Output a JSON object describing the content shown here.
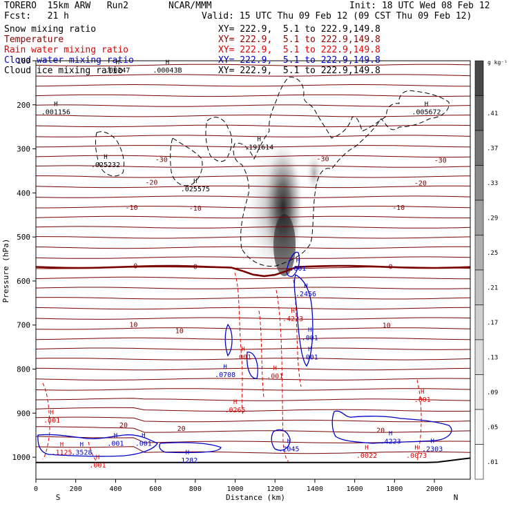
{
  "header": {
    "model": "TORERO  15km ARW   Run2",
    "org": "NCAR/MMM",
    "init": "Init: 18 UTC Wed 08 Feb 12",
    "fcst": "Fcst:   21 h",
    "valid": "Valid: 15 UTC Thu 09 Feb 12 (09 CST Thu 09 Feb 12)"
  },
  "fields": [
    {
      "name": "Snow mixing ratio",
      "range": "XY= 222.9,  5.1 to 222.9,149.8",
      "color": "#000000"
    },
    {
      "name": "Temperature",
      "range": "XY= 222.9,  5.1 to 222.9,149.8",
      "color": "#8b0000"
    },
    {
      "name": "Rain water mixing ratio",
      "range": "XY= 222.9,  5.1 to 222.9,149.8",
      "color": "#e00000"
    },
    {
      "name": "Cloud water mixing ratio",
      "range": "XY= 222.9,  5.1 to 222.9,149.8",
      "color": "#0000cc"
    },
    {
      "name": "Cloud ice mixing ratio",
      "range": "XY= 222.9,  5.1 to 222.9,149.8",
      "color": "#000000"
    }
  ],
  "chart_data": {
    "type": "cross-section contour",
    "xlabel": "Distance (km)",
    "ylabel": "Pressure (hPa)",
    "xlim": [
      0,
      2180
    ],
    "ylim": [
      1050,
      100
    ],
    "xticks": [
      0,
      200,
      400,
      600,
      800,
      1000,
      1200,
      1400,
      1600,
      1800,
      2000
    ],
    "yticks": [
      100,
      200,
      300,
      400,
      500,
      600,
      700,
      800,
      900,
      1000
    ],
    "end_labels": {
      "left": "S",
      "right": "N"
    },
    "colorbar": {
      "unit": "g kg⁻¹",
      "ticks": [
        ".01",
        ".05",
        ".09",
        ".13",
        ".17",
        ".21",
        ".25",
        ".29",
        ".33",
        ".37",
        ".41"
      ],
      "colors": [
        "#ffffff",
        "#f4f4f4",
        "#e8e8e8",
        "#dcdcdc",
        "#cfcfcf",
        "#c0c0c0",
        "#b0b0b0",
        "#9e9e9e",
        "#8a8a8a",
        "#747474",
        "#5e5e5e",
        "#484848"
      ]
    },
    "temperature_isotherms": [
      {
        "label": "-30",
        "pressure": 330
      },
      {
        "label": "-20",
        "pressure": 375
      },
      {
        "label": "-10",
        "pressure": 430
      },
      {
        "label": "0",
        "pressure": 568
      },
      {
        "label": "10",
        "pressure": 700
      },
      {
        "label": "20",
        "pressure": 930
      }
    ],
    "temperature_labels": [
      {
        "text": "-30",
        "x": 630,
        "p": 323
      },
      {
        "text": "-30",
        "x": 1440,
        "p": 322
      },
      {
        "text": "-30",
        "x": 2030,
        "p": 325
      },
      {
        "text": "-20",
        "x": 580,
        "p": 375
      },
      {
        "text": "-20",
        "x": 1930,
        "p": 377
      },
      {
        "text": "-10",
        "x": 480,
        "p": 432
      },
      {
        "text": "-10",
        "x": 800,
        "p": 434
      },
      {
        "text": "-10",
        "x": 1820,
        "p": 432
      },
      {
        "text": "0",
        "x": 500,
        "p": 565
      },
      {
        "text": "0",
        "x": 800,
        "p": 566
      },
      {
        "text": "0",
        "x": 1780,
        "p": 566
      },
      {
        "text": "10",
        "x": 490,
        "p": 698
      },
      {
        "text": "10",
        "x": 720,
        "p": 712
      },
      {
        "text": "10",
        "x": 1760,
        "p": 700
      },
      {
        "text": "20",
        "x": 440,
        "p": 926
      },
      {
        "text": "20",
        "x": 730,
        "p": 934
      },
      {
        "text": "20",
        "x": 1730,
        "p": 938
      }
    ],
    "maxima_labels": [
      {
        "text": ".00247",
        "x": 410,
        "p": 120,
        "field": "Cloud ice mixing ratio"
      },
      {
        "text": ".00043B",
        "x": 660,
        "p": 120,
        "field": "Cloud ice mixing ratio"
      },
      {
        "text": ".001156",
        "x": 100,
        "p": 215,
        "field": "Cloud ice mixing ratio"
      },
      {
        "text": ".025232",
        "x": 350,
        "p": 335,
        "field": "Cloud ice mixing ratio"
      },
      {
        "text": ".025575",
        "x": 800,
        "p": 390,
        "field": "Cloud ice mixing ratio"
      },
      {
        "text": ".191614",
        "x": 1120,
        "p": 295,
        "field": "Snow mixing ratio"
      },
      {
        "text": ".005672",
        "x": 1960,
        "p": 215,
        "field": "Cloud ice mixing ratio"
      },
      {
        "text": ".001",
        "x": 1315,
        "p": 570,
        "field": "Cloud water mixing ratio"
      },
      {
        "text": ".2456",
        "x": 1355,
        "p": 628,
        "field": "Cloud water mixing ratio"
      },
      {
        "text": ".4223",
        "x": 1290,
        "p": 685,
        "field": "Rain water mixing ratio"
      },
      {
        "text": ".001",
        "x": 1375,
        "p": 728,
        "field": "Cloud water mixing ratio"
      },
      {
        "text": ".001",
        "x": 1375,
        "p": 772,
        "field": "Cloud water mixing ratio"
      },
      {
        "text": ".001",
        "x": 1040,
        "p": 772,
        "field": "Rain water mixing ratio"
      },
      {
        "text": ".0708",
        "x": 950,
        "p": 812,
        "field": "Cloud water mixing ratio"
      },
      {
        "text": ".001",
        "x": 1200,
        "p": 815,
        "field": "Rain water mixing ratio"
      },
      {
        "text": ".0265",
        "x": 1000,
        "p": 892,
        "field": "Rain water mixing ratio"
      },
      {
        "text": ".001",
        "x": 1940,
        "p": 868,
        "field": "Rain water mixing ratio"
      },
      {
        "text": ".001",
        "x": 80,
        "p": 915,
        "field": "Rain water mixing ratio"
      },
      {
        "text": ".001",
        "x": 400,
        "p": 968,
        "field": "Cloud water mixing ratio"
      },
      {
        "text": ".001",
        "x": 540,
        "p": 968,
        "field": "Cloud water mixing ratio"
      },
      {
        "text": ".1125",
        "x": 130,
        "p": 988,
        "field": "Rain water mixing ratio"
      },
      {
        "text": ".3528",
        "x": 230,
        "p": 988,
        "field": "Cloud water mixing ratio"
      },
      {
        "text": ".1282",
        "x": 760,
        "p": 1006,
        "field": "Cloud water mixing ratio"
      },
      {
        "text": ".2045",
        "x": 1270,
        "p": 980,
        "field": "Cloud water mixing ratio"
      },
      {
        "text": ".4223",
        "x": 1780,
        "p": 963,
        "field": "Cloud water mixing ratio"
      },
      {
        "text": ".0022",
        "x": 1660,
        "p": 995,
        "field": "Rain water mixing ratio"
      },
      {
        "text": ".2303",
        "x": 1990,
        "p": 980,
        "field": "Cloud water mixing ratio"
      },
      {
        "text": ".0073",
        "x": 1910,
        "p": 995,
        "field": "Rain water mixing ratio"
      },
      {
        "text": ".001",
        "x": 310,
        "p": 1017,
        "field": "Rain water mixing ratio"
      }
    ]
  }
}
